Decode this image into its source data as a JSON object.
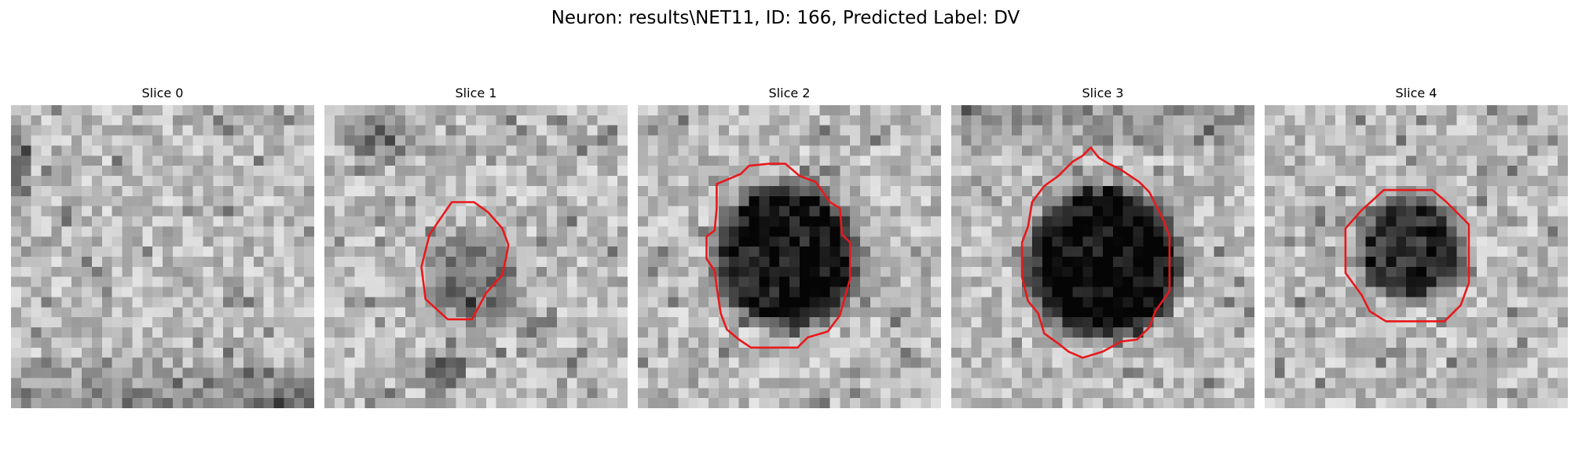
{
  "figure": {
    "title": "Neuron: results\\NET11, ID: 166, Predicted Label: DV",
    "contour_color": "#e8191c",
    "colormap": "grayscale",
    "slices": [
      {
        "label": "Slice 0",
        "has_contour": false,
        "texture": "dark-lower-band"
      },
      {
        "label": "Slice 1",
        "has_contour": true,
        "texture": "dark-top-left"
      },
      {
        "label": "Slice 2",
        "has_contour": true,
        "texture": "uniform"
      },
      {
        "label": "Slice 3",
        "has_contour": true,
        "texture": "vignette-top"
      },
      {
        "label": "Slice 4",
        "has_contour": true,
        "texture": "uniform"
      }
    ]
  }
}
